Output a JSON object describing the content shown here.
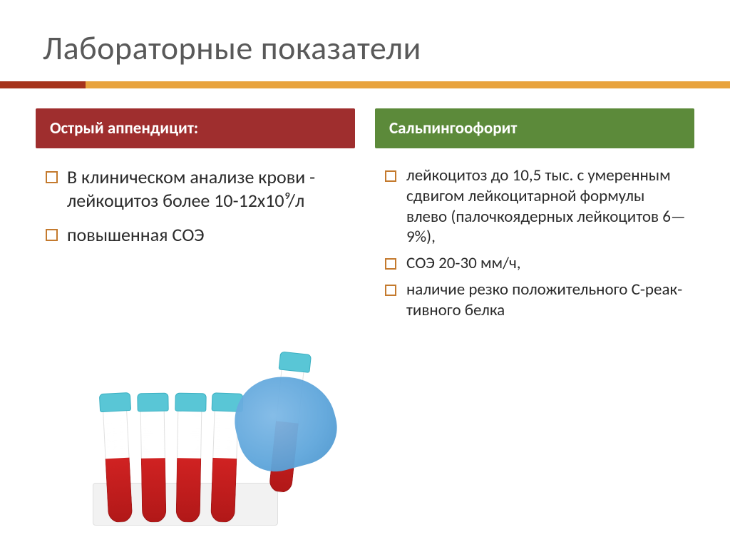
{
  "title": "Лабораторные показатели",
  "accent": {
    "red": "#a6331b",
    "orange": "#e8a33d"
  },
  "columns": {
    "left": {
      "header": "Острый аппендицит:",
      "header_bg": "#9f2e2e",
      "items": [
        "В клиническом анализе крови - лейкоцитоз более 10-12х10⁹/л",
        "повышенная СОЭ"
      ]
    },
    "right": {
      "header": "Сальпингоофорит",
      "header_bg": "#5c8a3a",
      "items": [
        "лейкоцитоз до 10,5 тыс. с умеренным сдвигом лейкоцитарной формулы влево (палочкоядерных лейкоцитов 6—9%),",
        "СОЭ 20-30 мм/ч,",
        "наличие резко положительного С-реак­тивного белка"
      ]
    }
  },
  "image": {
    "description": "blood-sample-tubes-with-gloved-hand",
    "tube_cap_color": "#59c6d6",
    "glove_color": "#5fa6db",
    "blood_color": "#b11818",
    "tube_count_in_rack": 4
  }
}
